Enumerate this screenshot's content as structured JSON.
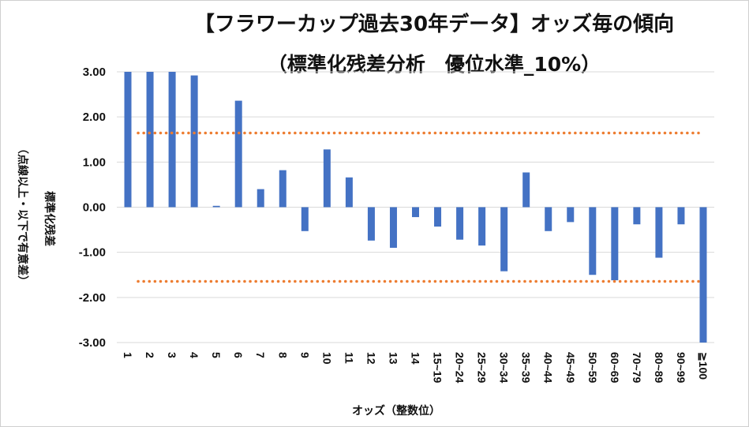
{
  "chart_data": {
    "type": "bar",
    "title": "【フラワーカップ過去30年データ】オッズ毎の傾向",
    "subtitle": "（標準化残差分析　優位水準_10%）",
    "xlabel": "オッズ（整数位）",
    "ylabel_line1": "標準化残差",
    "ylabel_line2": "（点線以上・以下で有意差）",
    "ylim": [
      -3,
      3
    ],
    "yticks": [
      "3.00",
      "2.00",
      "1.00",
      "0.00",
      "-1.00",
      "-2.00",
      "-3.00"
    ],
    "categories": [
      "1",
      "2",
      "3",
      "4",
      "5",
      "6",
      "7",
      "8",
      "9",
      "10",
      "11",
      "12",
      "13",
      "14",
      "15~19",
      "20~24",
      "25~29",
      "30~34",
      "35~39",
      "40~44",
      "45~49",
      "50~59",
      "60~69",
      "70~79",
      "80~89",
      "90~99",
      "≧100"
    ],
    "values": [
      3.0,
      3.0,
      3.0,
      2.92,
      0.03,
      2.36,
      0.4,
      0.82,
      -0.53,
      1.28,
      0.66,
      -0.74,
      -0.9,
      -0.22,
      -0.43,
      -0.72,
      -0.85,
      -1.42,
      0.77,
      -0.53,
      -0.33,
      -1.5,
      -1.62,
      -0.38,
      -1.12,
      -0.38,
      -3.0
    ],
    "thresholds": [
      1.645,
      -1.645
    ],
    "colors": {
      "bar": "#4472C4",
      "threshold": "#ED7D31",
      "grid": "#D9D9D9"
    }
  }
}
